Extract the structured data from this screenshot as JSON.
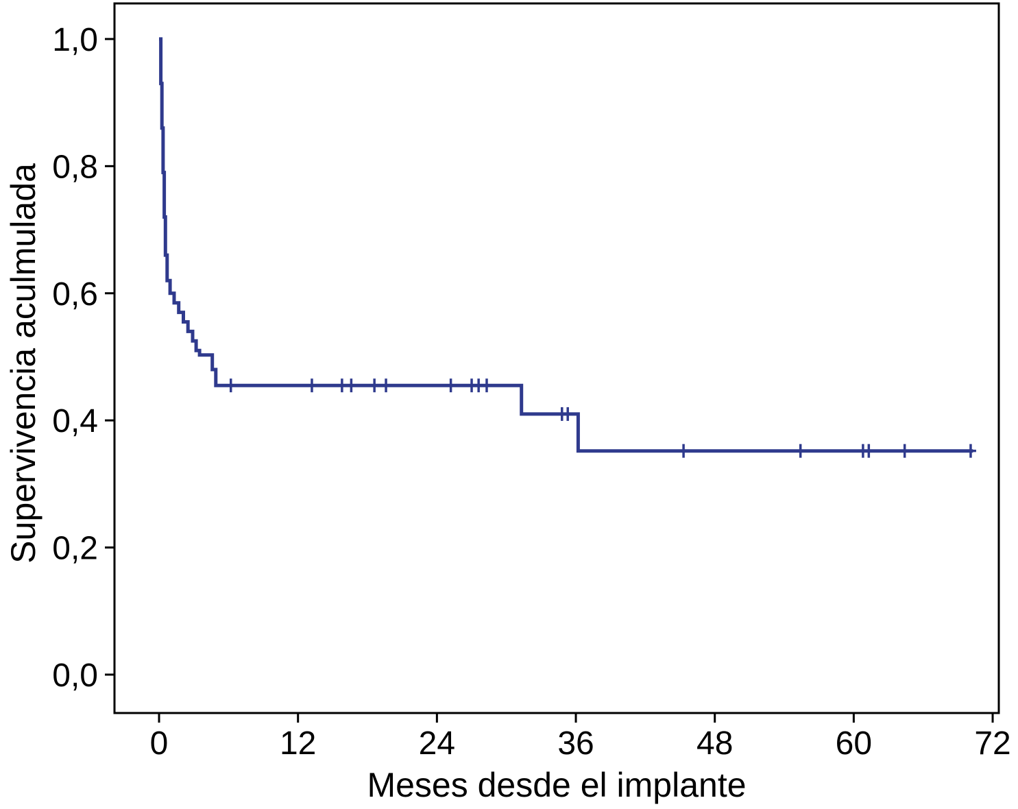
{
  "chart_data": {
    "type": "line",
    "subtype": "kaplan-meier-step",
    "title": "",
    "xlabel": "Meses desde el implante",
    "ylabel": "Supervivencia aculmulada",
    "xlim": [
      -3.85,
      72.53
    ],
    "ylim": [
      -0.0604,
      1.056
    ],
    "xticks": [
      0,
      12,
      24,
      36,
      48,
      60,
      72
    ],
    "xtick_labels": [
      "0",
      "12",
      "24",
      "36",
      "48",
      "60",
      "72"
    ],
    "yticks": [
      0.0,
      0.2,
      0.4,
      0.6,
      0.8,
      1.0
    ],
    "ytick_labels": [
      "0,0",
      "0,2",
      "0,4",
      "0,6",
      "0,8",
      "1,0"
    ],
    "grid": false,
    "legend": "none",
    "line_color": "#2f3a8d",
    "axis_color": "#000000",
    "series": [
      {
        "name": "Supervivencia aculmulada",
        "points": [
          [
            0,
            1.0
          ],
          [
            0.15,
            0.93
          ],
          [
            0.25,
            0.86
          ],
          [
            0.35,
            0.79
          ],
          [
            0.45,
            0.72
          ],
          [
            0.55,
            0.66
          ],
          [
            0.7,
            0.62
          ],
          [
            0.95,
            0.6
          ],
          [
            1.3,
            0.585
          ],
          [
            1.7,
            0.57
          ],
          [
            2.1,
            0.555
          ],
          [
            2.5,
            0.54
          ],
          [
            2.9,
            0.525
          ],
          [
            3.2,
            0.51
          ],
          [
            3.5,
            0.503
          ],
          [
            4.6,
            0.48
          ],
          [
            4.9,
            0.455
          ],
          [
            31.3,
            0.41
          ],
          [
            36.2,
            0.352
          ],
          [
            70.3,
            0.352
          ]
        ],
        "censors": [
          [
            6.2,
            0.455
          ],
          [
            13.2,
            0.455
          ],
          [
            15.8,
            0.455
          ],
          [
            16.6,
            0.455
          ],
          [
            18.6,
            0.455
          ],
          [
            19.6,
            0.455
          ],
          [
            25.2,
            0.455
          ],
          [
            27.0,
            0.455
          ],
          [
            27.6,
            0.455
          ],
          [
            28.3,
            0.455
          ],
          [
            34.8,
            0.41
          ],
          [
            35.3,
            0.41
          ],
          [
            45.3,
            0.352
          ],
          [
            55.4,
            0.352
          ],
          [
            60.8,
            0.352
          ],
          [
            61.3,
            0.352
          ],
          [
            64.4,
            0.352
          ],
          [
            70.1,
            0.352
          ]
        ]
      }
    ]
  },
  "axes": {
    "x_title": "Meses desde el implante",
    "y_title": "Supervivencia aculmulada"
  }
}
